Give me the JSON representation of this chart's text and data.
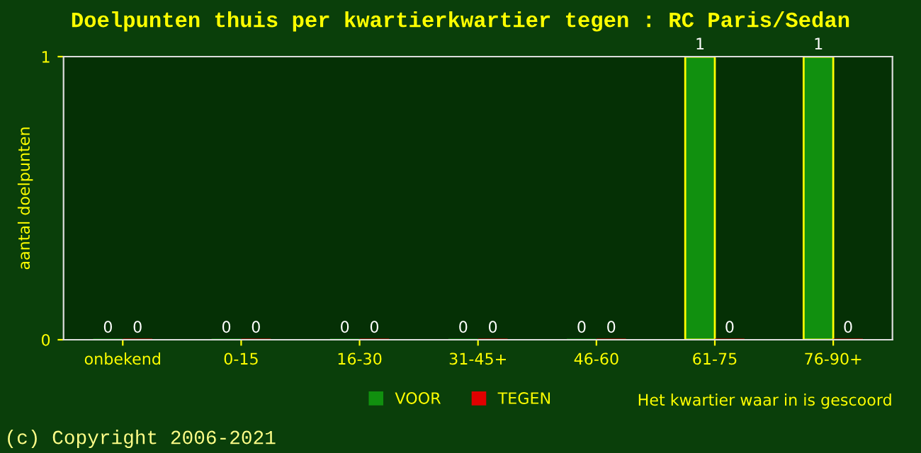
{
  "chart_data": {
    "type": "bar",
    "title": "Doelpunten thuis per kwartierkwartier tegen : RC Paris/Sedan",
    "categories": [
      "onbekend",
      "0-15",
      "16-30",
      "31-45+",
      "46-60",
      "61-75",
      "76-90+"
    ],
    "series": [
      {
        "name": "VOOR",
        "color": "#11900f",
        "values": [
          0,
          0,
          0,
          0,
          0,
          1,
          1
        ]
      },
      {
        "name": "TEGEN",
        "color": "#e00000",
        "values": [
          0,
          0,
          0,
          0,
          0,
          0,
          0
        ]
      }
    ],
    "ylabel": "aantal doelpunten",
    "xlabel": "Het kwartier waar in is gescoord",
    "ylim": [
      0,
      1
    ],
    "yticks": [
      0,
      1
    ],
    "grid": false,
    "legend": "bottom",
    "data_labels": true,
    "annotations": [
      "(c) Copyright 2006-2021"
    ]
  }
}
